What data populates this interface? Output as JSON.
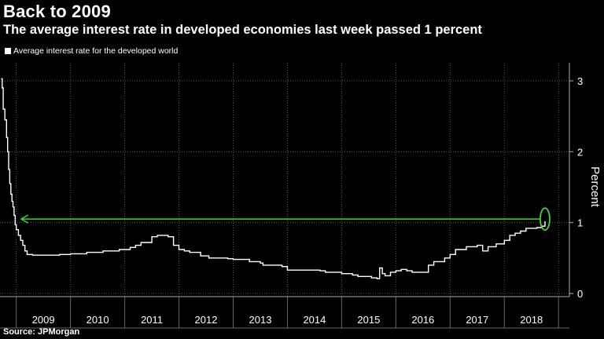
{
  "title": "Back to 2009",
  "subtitle": "The average interest rate in developed economies last week passed 1 percent",
  "source": "Source: JPMorgan",
  "chart_data": {
    "type": "line",
    "title": "Back to 2009",
    "subtitle": "The average interest rate in developed economies last week passed 1 percent",
    "ylabel": "Percent",
    "xlabel": "",
    "ylim": [
      0,
      3
    ],
    "yticks": [
      0,
      1,
      2,
      3
    ],
    "xlim": [
      2008.7,
      2019.2
    ],
    "xticks": [
      "2009",
      "2010",
      "2011",
      "2012",
      "2013",
      "2014",
      "2015",
      "2016",
      "2017",
      "2018"
    ],
    "grid": true,
    "legend_position": "top-left",
    "colors": {
      "series": "#ffffff",
      "annotation": "#3fd33f",
      "background": "#000000"
    },
    "annotations": [
      {
        "type": "arrow",
        "from_x": 2018.75,
        "to_x": 2009.0,
        "y": 1.05
      },
      {
        "type": "ellipse",
        "x": 2018.75,
        "y": 1.05
      }
    ],
    "series": [
      {
        "name": "Average interest rate for the developed world",
        "x": [
          2008.72,
          2008.74,
          2008.76,
          2008.79,
          2008.82,
          2008.84,
          2008.86,
          2008.88,
          2008.9,
          2008.92,
          2008.94,
          2008.96,
          2008.98,
          2009.0,
          2009.04,
          2009.08,
          2009.12,
          2009.16,
          2009.2,
          2009.3,
          2009.5,
          2009.8,
          2010.0,
          2010.3,
          2010.6,
          2010.9,
          2011.1,
          2011.2,
          2011.3,
          2011.5,
          2011.6,
          2011.8,
          2011.9,
          2012.0,
          2012.1,
          2012.2,
          2012.4,
          2012.55,
          2012.6,
          2012.9,
          2013.0,
          2013.3,
          2013.5,
          2013.55,
          2013.9,
          2014.0,
          2014.6,
          2014.7,
          2015.0,
          2015.2,
          2015.3,
          2015.55,
          2015.65,
          2015.7,
          2015.75,
          2015.8,
          2015.9,
          2016.0,
          2016.1,
          2016.2,
          2016.3,
          2016.5,
          2016.6,
          2016.7,
          2016.9,
          2017.0,
          2017.1,
          2017.3,
          2017.5,
          2017.6,
          2017.7,
          2017.85,
          2018.0,
          2018.1,
          2018.2,
          2018.3,
          2018.4,
          2018.6,
          2018.7,
          2018.75
        ],
        "y": [
          3.03,
          2.9,
          2.6,
          2.45,
          2.2,
          2.0,
          1.75,
          1.55,
          1.4,
          1.3,
          1.22,
          1.1,
          0.97,
          0.9,
          0.82,
          0.75,
          0.68,
          0.6,
          0.55,
          0.54,
          0.54,
          0.55,
          0.56,
          0.58,
          0.6,
          0.62,
          0.65,
          0.68,
          0.72,
          0.8,
          0.82,
          0.8,
          0.68,
          0.62,
          0.6,
          0.58,
          0.53,
          0.5,
          0.5,
          0.49,
          0.48,
          0.45,
          0.43,
          0.4,
          0.38,
          0.33,
          0.32,
          0.3,
          0.28,
          0.26,
          0.24,
          0.22,
          0.21,
          0.36,
          0.28,
          0.25,
          0.3,
          0.32,
          0.34,
          0.32,
          0.3,
          0.3,
          0.4,
          0.45,
          0.5,
          0.55,
          0.62,
          0.66,
          0.68,
          0.6,
          0.66,
          0.7,
          0.75,
          0.82,
          0.85,
          0.88,
          0.92,
          0.93,
          0.95,
          1.02
        ]
      }
    ]
  }
}
